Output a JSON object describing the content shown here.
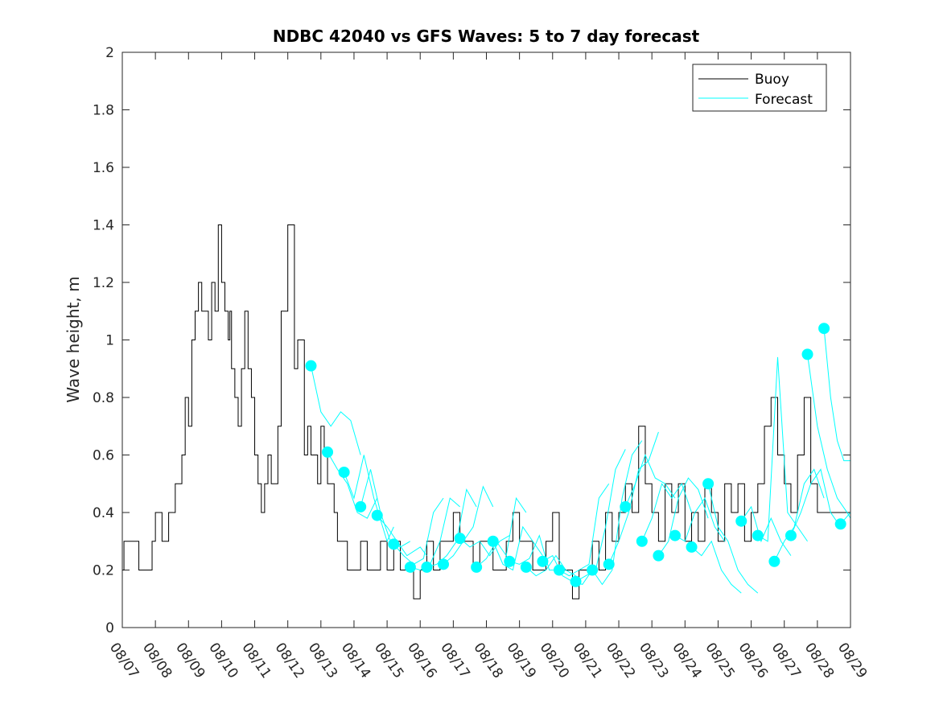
{
  "chart_data": {
    "type": "line",
    "title": "NDBC 42040 vs GFS Waves: 5 to 7 day forecast",
    "xlabel": "",
    "ylabel": "Wave height, m",
    "ylim": [
      0,
      2
    ],
    "xlim_days": [
      0,
      22
    ],
    "yticks": [
      0,
      0.2,
      0.4,
      0.6,
      0.8,
      1,
      1.2,
      1.4,
      1.6,
      1.8,
      2
    ],
    "ytick_labels": [
      "0",
      "0.2",
      "0.4",
      "0.6",
      "0.8",
      "1",
      "1.2",
      "1.4",
      "1.6",
      "1.8",
      "2"
    ],
    "xticks": [
      0,
      1,
      2,
      3,
      4,
      5,
      6,
      7,
      8,
      9,
      10,
      11,
      12,
      13,
      14,
      15,
      16,
      17,
      18,
      19,
      20,
      21,
      22
    ],
    "xtick_labels": [
      "08/07",
      "08/08",
      "08/09",
      "08/10",
      "08/11",
      "08/12",
      "08/13",
      "08/14",
      "08/15",
      "08/16",
      "08/17",
      "08/18",
      "08/19",
      "08/20",
      "08/21",
      "08/22",
      "08/23",
      "08/24",
      "08/25",
      "08/26",
      "08/27",
      "08/28",
      "08/29"
    ],
    "grid": false,
    "legend": {
      "position": "top-right",
      "entries": [
        "Buoy",
        "Forecast"
      ]
    },
    "colors": {
      "buoy": "#000000",
      "forecast": "#00ffff",
      "axes": "#262626"
    },
    "series": [
      {
        "name": "Buoy",
        "style": "step",
        "x": [
          0,
          0.05,
          0.45,
          0.5,
          0.7,
          0.9,
          1.0,
          1.2,
          1.4,
          1.6,
          1.8,
          1.9,
          2.0,
          2.1,
          2.2,
          2.3,
          2.4,
          2.5,
          2.6,
          2.7,
          2.8,
          2.9,
          3.0,
          3.1,
          3.2,
          3.25,
          3.3,
          3.4,
          3.5,
          3.6,
          3.7,
          3.8,
          3.9,
          4.0,
          4.1,
          4.2,
          4.3,
          4.4,
          4.5,
          4.6,
          4.7,
          4.8,
          5.0,
          5.2,
          5.3,
          5.5,
          5.6,
          5.7,
          5.8,
          5.9,
          6.0,
          6.1,
          6.2,
          6.3,
          6.4,
          6.5,
          6.6,
          6.7,
          6.8,
          6.9,
          7.0,
          7.2,
          7.4,
          7.6,
          7.8,
          8.0,
          8.2,
          8.4,
          8.6,
          8.8,
          9.0,
          9.2,
          9.4,
          9.6,
          9.8,
          10.0,
          10.2,
          10.4,
          10.6,
          10.8,
          11.0,
          11.2,
          11.4,
          11.6,
          11.8,
          12.0,
          12.2,
          12.4,
          12.6,
          12.8,
          13.0,
          13.2,
          13.4,
          13.6,
          13.8,
          14.0,
          14.2,
          14.4,
          14.6,
          14.8,
          15.0,
          15.2,
          15.4,
          15.6,
          15.8,
          16.0,
          16.2,
          16.4,
          16.6,
          16.8,
          17.0,
          17.2,
          17.4,
          17.6,
          17.8,
          18.0,
          18.2,
          18.4,
          18.6,
          18.8,
          19.0,
          19.2,
          19.4,
          19.6,
          19.8,
          20.0,
          20.2,
          20.4,
          20.6,
          20.8,
          21.0,
          21.2,
          21.4,
          21.6,
          21.8,
          22.0
        ],
        "values": [
          0.2,
          0.3,
          0.3,
          0.2,
          0.2,
          0.3,
          0.4,
          0.3,
          0.4,
          0.5,
          0.6,
          0.8,
          0.7,
          1.0,
          1.1,
          1.2,
          1.1,
          1.1,
          1.0,
          1.2,
          1.1,
          1.4,
          1.2,
          1.1,
          1.0,
          1.1,
          0.9,
          0.8,
          0.7,
          0.9,
          1.1,
          0.9,
          0.8,
          0.6,
          0.5,
          0.4,
          0.5,
          0.6,
          0.5,
          0.5,
          0.7,
          1.1,
          1.4,
          0.9,
          1.0,
          0.6,
          0.7,
          0.6,
          0.6,
          0.5,
          0.7,
          0.6,
          0.5,
          0.5,
          0.4,
          0.3,
          0.3,
          0.3,
          0.2,
          0.2,
          0.2,
          0.3,
          0.2,
          0.2,
          0.3,
          0.2,
          0.3,
          0.2,
          0.2,
          0.1,
          0.2,
          0.3,
          0.2,
          0.3,
          0.3,
          0.4,
          0.3,
          0.3,
          0.2,
          0.3,
          0.3,
          0.2,
          0.2,
          0.3,
          0.4,
          0.3,
          0.3,
          0.2,
          0.2,
          0.3,
          0.4,
          0.2,
          0.2,
          0.1,
          0.2,
          0.2,
          0.3,
          0.2,
          0.4,
          0.3,
          0.4,
          0.5,
          0.4,
          0.7,
          0.5,
          0.4,
          0.3,
          0.5,
          0.4,
          0.5,
          0.3,
          0.4,
          0.3,
          0.5,
          0.4,
          0.3,
          0.5,
          0.4,
          0.5,
          0.3,
          0.4,
          0.5,
          0.7,
          0.8,
          0.6,
          0.5,
          0.4,
          0.6,
          0.8,
          0.5,
          0.4,
          0.4,
          0.4,
          0.4,
          0.4,
          0.4
        ]
      },
      {
        "name": "Forecast",
        "x": [
          5.7,
          6.0,
          6.3,
          6.6,
          6.9,
          7.2
        ],
        "values": [
          0.91,
          0.75,
          0.7,
          0.75,
          0.72,
          0.6
        ]
      },
      {
        "name": "Forecast",
        "x": [
          6.2,
          6.5,
          6.8,
          7.1,
          7.4,
          7.7
        ],
        "values": [
          0.61,
          0.55,
          0.5,
          0.4,
          0.38,
          0.45
        ]
      },
      {
        "name": "Forecast",
        "x": [
          6.7,
          7.0,
          7.3,
          7.6,
          8.0,
          8.2
        ],
        "values": [
          0.54,
          0.45,
          0.6,
          0.45,
          0.3,
          0.35
        ]
      },
      {
        "name": "Forecast",
        "x": [
          7.2,
          7.5,
          7.8,
          8.1,
          8.4,
          8.7
        ],
        "values": [
          0.42,
          0.55,
          0.4,
          0.3,
          0.28,
          0.3
        ]
      },
      {
        "name": "Forecast",
        "x": [
          7.7,
          8.0,
          8.3,
          8.6,
          9.0,
          9.2
        ],
        "values": [
          0.39,
          0.35,
          0.3,
          0.25,
          0.28,
          0.25
        ]
      },
      {
        "name": "Forecast",
        "x": [
          8.2,
          8.5,
          8.8,
          9.1,
          9.4,
          9.7
        ],
        "values": [
          0.29,
          0.25,
          0.22,
          0.24,
          0.4,
          0.45
        ]
      },
      {
        "name": "Forecast",
        "x": [
          8.7,
          9.0,
          9.3,
          9.6,
          9.9,
          10.2
        ],
        "values": [
          0.21,
          0.2,
          0.22,
          0.3,
          0.45,
          0.42
        ]
      },
      {
        "name": "Forecast",
        "x": [
          9.2,
          9.5,
          9.8,
          10.1,
          10.4,
          10.7
        ],
        "values": [
          0.21,
          0.22,
          0.25,
          0.3,
          0.48,
          0.42
        ]
      },
      {
        "name": "Forecast",
        "x": [
          9.7,
          10.0,
          10.3,
          10.6,
          10.9,
          11.2
        ],
        "values": [
          0.22,
          0.25,
          0.3,
          0.35,
          0.49,
          0.42
        ]
      },
      {
        "name": "Forecast",
        "x": [
          10.2,
          10.5,
          10.8,
          11.1,
          11.4,
          11.7
        ],
        "values": [
          0.31,
          0.28,
          0.3,
          0.25,
          0.3,
          0.32
        ]
      },
      {
        "name": "Forecast",
        "x": [
          10.7,
          11.0,
          11.3,
          11.6,
          11.9,
          12.2
        ],
        "values": [
          0.21,
          0.24,
          0.3,
          0.25,
          0.45,
          0.4
        ]
      },
      {
        "name": "Forecast",
        "x": [
          11.2,
          11.5,
          11.8,
          12.1,
          12.4,
          12.7
        ],
        "values": [
          0.3,
          0.22,
          0.2,
          0.35,
          0.3,
          0.25
        ]
      },
      {
        "name": "Forecast",
        "x": [
          11.7,
          12.0,
          12.3,
          12.6,
          12.9,
          13.2
        ],
        "values": [
          0.23,
          0.22,
          0.24,
          0.32,
          0.2,
          0.2
        ]
      },
      {
        "name": "Forecast",
        "x": [
          12.2,
          12.5,
          12.8,
          13.1,
          13.4,
          13.7
        ],
        "values": [
          0.21,
          0.18,
          0.2,
          0.25,
          0.2,
          0.18
        ]
      },
      {
        "name": "Forecast",
        "x": [
          12.7,
          13.0,
          13.3,
          13.6,
          13.9,
          14.2
        ],
        "values": [
          0.23,
          0.25,
          0.18,
          0.16,
          0.15,
          0.2
        ]
      },
      {
        "name": "Forecast",
        "x": [
          13.2,
          13.5,
          13.8,
          14.1,
          14.4,
          14.7
        ],
        "values": [
          0.2,
          0.18,
          0.2,
          0.22,
          0.45,
          0.5
        ]
      },
      {
        "name": "Forecast",
        "x": [
          13.7,
          14.0,
          14.3,
          14.6,
          14.9,
          15.2
        ],
        "values": [
          0.16,
          0.18,
          0.2,
          0.35,
          0.55,
          0.62
        ]
      },
      {
        "name": "Forecast",
        "x": [
          14.2,
          14.5,
          14.8,
          15.1,
          15.4,
          15.7
        ],
        "values": [
          0.2,
          0.15,
          0.2,
          0.45,
          0.6,
          0.65
        ]
      },
      {
        "name": "Forecast",
        "x": [
          14.7,
          15.0,
          15.3,
          15.6,
          15.9,
          16.2
        ],
        "values": [
          0.22,
          0.3,
          0.4,
          0.55,
          0.58,
          0.68
        ]
      },
      {
        "name": "Forecast",
        "x": [
          15.2,
          15.5,
          15.8,
          16.1,
          16.4,
          16.7
        ],
        "values": [
          0.42,
          0.5,
          0.6,
          0.52,
          0.5,
          0.45
        ]
      },
      {
        "name": "Forecast",
        "x": [
          15.7,
          16.0,
          16.3,
          16.6,
          16.9,
          17.2
        ],
        "values": [
          0.3,
          0.38,
          0.5,
          0.45,
          0.5,
          0.4
        ]
      },
      {
        "name": "Forecast",
        "x": [
          16.2,
          16.5,
          16.8,
          17.1,
          17.4,
          17.7
        ],
        "values": [
          0.25,
          0.3,
          0.45,
          0.52,
          0.48,
          0.38
        ]
      },
      {
        "name": "Forecast",
        "x": [
          16.7,
          17.0,
          17.3,
          17.6,
          17.9,
          18.2
        ],
        "values": [
          0.32,
          0.3,
          0.4,
          0.45,
          0.35,
          0.3
        ]
      },
      {
        "name": "Forecast",
        "x": [
          17.2,
          17.5,
          17.8,
          18.1,
          18.4,
          18.7
        ],
        "values": [
          0.28,
          0.25,
          0.3,
          0.2,
          0.15,
          0.12
        ]
      },
      {
        "name": "Forecast",
        "x": [
          17.7,
          18.0,
          18.3,
          18.6,
          18.9,
          19.2
        ],
        "values": [
          0.5,
          0.35,
          0.3,
          0.2,
          0.15,
          0.12
        ]
      },
      {
        "name": "Forecast",
        "x": [
          18.7,
          19.0,
          19.3,
          19.6,
          19.9,
          20.2
        ],
        "values": [
          0.37,
          0.42,
          0.3,
          0.38,
          0.3,
          0.25
        ]
      },
      {
        "name": "Forecast",
        "x": [
          19.2,
          19.5,
          19.8,
          20.1,
          20.4,
          20.7
        ],
        "values": [
          0.32,
          0.3,
          0.94,
          0.4,
          0.35,
          0.3
        ]
      },
      {
        "name": "Forecast",
        "x": [
          19.7,
          20.0,
          20.3,
          20.6,
          20.9,
          21.2
        ],
        "values": [
          0.23,
          0.3,
          0.35,
          0.5,
          0.55,
          0.45
        ]
      },
      {
        "name": "Forecast",
        "x": [
          20.2,
          20.5,
          20.8,
          21.1,
          21.4,
          21.7
        ],
        "values": [
          0.32,
          0.4,
          0.5,
          0.55,
          0.4,
          0.35
        ]
      },
      {
        "name": "Forecast",
        "x": [
          20.7,
          21.0,
          21.3,
          21.6,
          21.9,
          22.0
        ],
        "values": [
          0.95,
          0.7,
          0.55,
          0.45,
          0.4,
          0.38
        ]
      },
      {
        "name": "Forecast",
        "x": [
          21.2,
          21.4,
          21.6,
          21.8,
          22.0
        ],
        "values": [
          1.04,
          0.8,
          0.65,
          0.58,
          0.58
        ]
      },
      {
        "name": "Forecast",
        "x": [
          21.7,
          21.85,
          22.0
        ],
        "values": [
          0.36,
          0.38,
          0.4
        ]
      }
    ],
    "markers": {
      "name": "Forecast start",
      "x": [
        5.7,
        6.2,
        6.7,
        7.2,
        7.7,
        8.2,
        8.7,
        9.2,
        9.7,
        10.2,
        10.7,
        11.2,
        11.7,
        12.2,
        12.7,
        13.2,
        13.7,
        14.2,
        14.7,
        15.2,
        15.7,
        16.2,
        16.7,
        17.2,
        17.7,
        18.7,
        19.2,
        19.7,
        20.2,
        20.7,
        21.2,
        21.7
      ],
      "values": [
        0.91,
        0.61,
        0.54,
        0.42,
        0.39,
        0.29,
        0.21,
        0.21,
        0.22,
        0.31,
        0.21,
        0.3,
        0.23,
        0.21,
        0.23,
        0.2,
        0.16,
        0.2,
        0.22,
        0.42,
        0.3,
        0.25,
        0.32,
        0.28,
        0.5,
        0.37,
        0.32,
        0.23,
        0.32,
        0.95,
        1.04,
        0.36
      ]
    }
  }
}
